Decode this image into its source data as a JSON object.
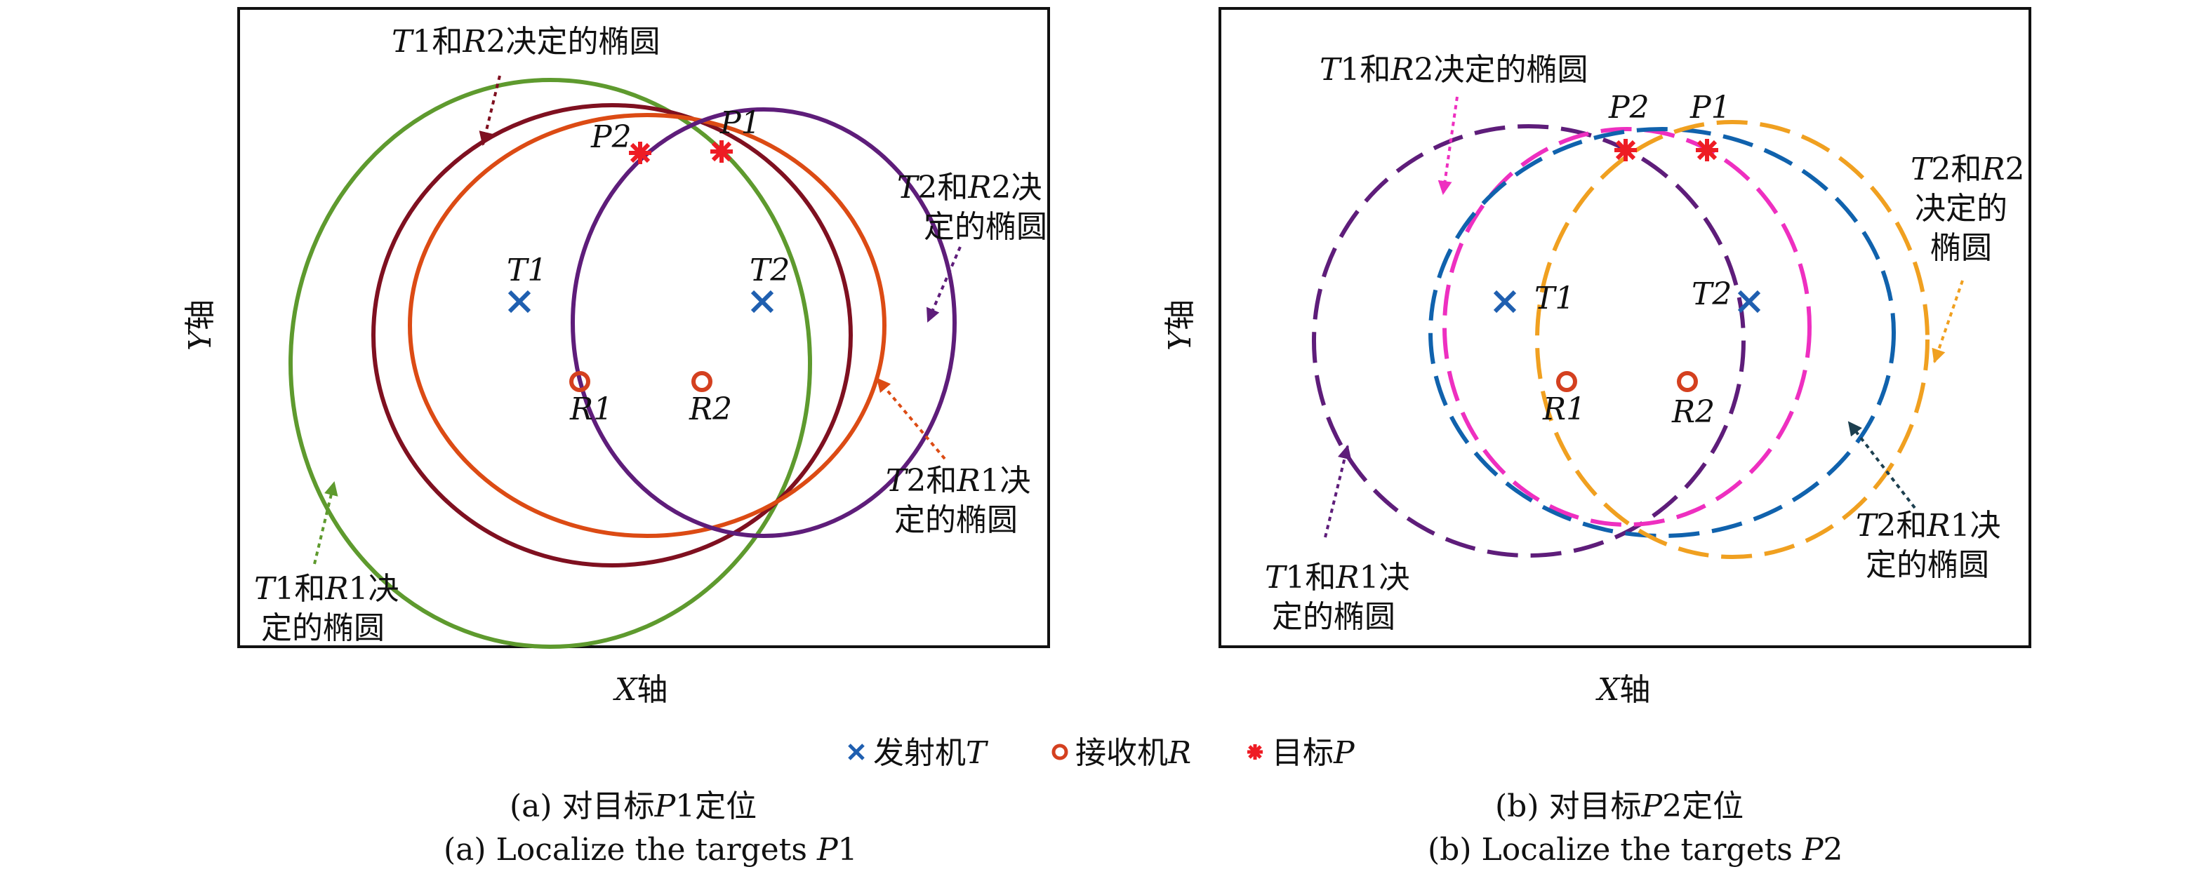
{
  "colors": {
    "transmitter": "#1f5fb0",
    "receiver": "#d4401f",
    "target": "#ee1c24",
    "green": "#5e9a2e",
    "darkred": "#7f1020",
    "orange": "#dc4b14",
    "purple": "#5e1d7a",
    "dashPurple": "#5e1d7a",
    "dashMagenta": "#ee2fc0",
    "dashBlue": "#1062ad",
    "dashOrange": "#f0a020",
    "annDarkTeal": "#1c3f4f"
  },
  "panel_a": {
    "x_axis_label_var": "X",
    "x_axis_label_text": "轴",
    "y_axis_label_var": "Y",
    "y_axis_label_text": "轴",
    "T1": "T1",
    "T2": "T2",
    "R1": "R1",
    "R2": "R2",
    "P1": "P1",
    "P2": "P2",
    "ann_t1r2_var1": "T",
    "ann_t1r2_num1": "1",
    "ann_t1r2_mid": "和",
    "ann_t1r2_var2": "R",
    "ann_t1r2_num2": "2",
    "ann_t1r2_tail": "决定的椭圆",
    "ann_t2r2_var1": "T",
    "ann_t2r2_num1": "2",
    "ann_t2r2_mid": "和",
    "ann_t2r2_var2": "R",
    "ann_t2r2_num2": "2",
    "ann_t2r2_tail": "决",
    "ann_t2r2_line2": "定的椭圆",
    "ann_t2r1_var1": "T",
    "ann_t2r1_num1": "2",
    "ann_t2r1_mid": "和",
    "ann_t2r1_var2": "R",
    "ann_t2r1_num2": "1",
    "ann_t2r1_tail": "决",
    "ann_t2r1_line2": "定的椭圆",
    "ann_t1r1_var1": "T",
    "ann_t1r1_num1": "1",
    "ann_t1r1_mid": "和",
    "ann_t1r1_var2": "R",
    "ann_t1r1_num2": "1",
    "ann_t1r1_tail": "决",
    "ann_t1r1_line2": "定的椭圆",
    "caption_cn_prefix": "(a) 对目标",
    "caption_cn_var": "P",
    "caption_cn_num": "1",
    "caption_cn_suffix": "定位",
    "caption_en_prefix": "(a) Localize the targets ",
    "caption_en_var": "P",
    "caption_en_num": "1"
  },
  "panel_b": {
    "x_axis_label_var": "X",
    "x_axis_label_text": "轴",
    "y_axis_label_var": "Y",
    "y_axis_label_text": "轴",
    "T1": "T1",
    "T2": "T2",
    "R1": "R1",
    "R2": "R2",
    "P1": "P1",
    "P2": "P2",
    "ann_t1r2_var1": "T",
    "ann_t1r2_num1": "1",
    "ann_t1r2_mid": "和",
    "ann_t1r2_var2": "R",
    "ann_t1r2_num2": "2",
    "ann_t1r2_tail": "决定的椭圆",
    "ann_t2r2_var1": "T",
    "ann_t2r2_num1": "2",
    "ann_t2r2_mid": "和",
    "ann_t2r2_var2": "R",
    "ann_t2r2_num2": "2",
    "ann_t2r2_line2": "决定的",
    "ann_t2r2_line3": "椭圆",
    "ann_t1r1_var1": "T",
    "ann_t1r1_num1": "1",
    "ann_t1r1_mid": "和",
    "ann_t1r1_var2": "R",
    "ann_t1r1_num2": "1",
    "ann_t1r1_tail": "决",
    "ann_t1r1_line2": "定的椭圆",
    "ann_t2r1_var1": "T",
    "ann_t2r1_num1": "2",
    "ann_t2r1_mid": "和",
    "ann_t2r1_var2": "R",
    "ann_t2r1_num2": "1",
    "ann_t2r1_tail": "决",
    "ann_t2r1_line2": "定的椭圆",
    "caption_cn_prefix": "(b) 对目标",
    "caption_cn_var": "P",
    "caption_cn_num": "2",
    "caption_cn_suffix": "定位",
    "caption_en_prefix": "(b) Localize the targets ",
    "caption_en_var": "P",
    "caption_en_num": "2"
  },
  "legend": {
    "transmitter_text": "发射机",
    "transmitter_var": "T",
    "receiver_text": "接收机",
    "receiver_var": "R",
    "target_text": "目标",
    "target_var": "P"
  }
}
